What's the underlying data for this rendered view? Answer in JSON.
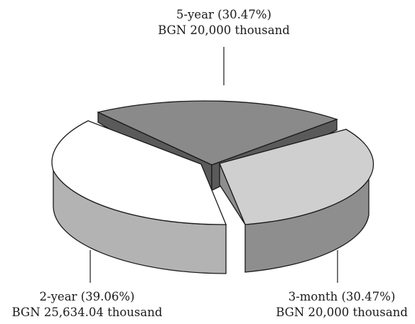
{
  "chart_data": {
    "type": "pie",
    "style": "3d-exploded",
    "slices": [
      {
        "label": "5-year",
        "percent": 30.47,
        "pct_text": "(30.47%)",
        "amount_text": "BGN 20,000 thousand",
        "top_color": "#8a8a8a",
        "side_color": "#5a5a5a"
      },
      {
        "label": "3-month",
        "percent": 30.47,
        "pct_text": "(30.47%)",
        "amount_text": "BGN 20,000 thousand",
        "top_color": "#cfcfcf",
        "side_color": "#8e8e8e"
      },
      {
        "label": "2-year",
        "percent": 39.06,
        "pct_text": "(39.06%)",
        "amount_text": "BGN 25,634.04 thousand",
        "top_color": "#ffffff",
        "side_color": "#b3b3b3"
      }
    ]
  },
  "labels": {
    "five_year": {
      "line1": "5-year (30.47%)",
      "line2": "BGN 20,000 thousand"
    },
    "three_month": {
      "line1": "3-month (30.47%)",
      "line2": "BGN 20,000 thousand"
    },
    "two_year": {
      "line1": "2-year (39.06%)",
      "line2": "BGN 25,634.04 thousand"
    }
  }
}
